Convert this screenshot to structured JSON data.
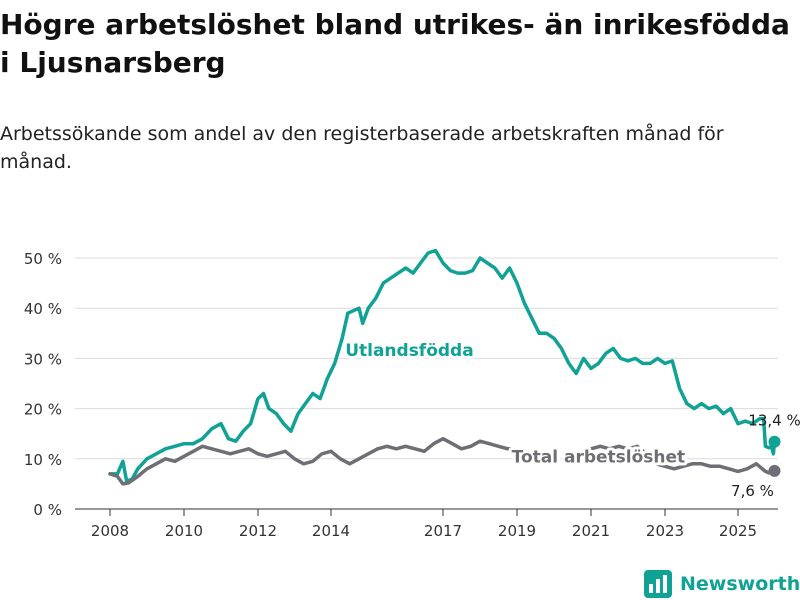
{
  "title": "Högre arbetslöshet bland utrikes- än inrikesfödda i Ljusnarsberg",
  "subtitle": "Arbetssökande som andel av den registerbaserade arbetskraften månad för månad.",
  "brand": {
    "name": "Newsworthy",
    "icon": "bar-chart-logo-icon"
  },
  "colors": {
    "foreign_born": "#0fa295",
    "total": "#6e6e74",
    "grid": "#dcdcdc",
    "brand": "#0fa295"
  },
  "chart_data": {
    "type": "line",
    "ylim": [
      0,
      50
    ],
    "yticks": [
      0,
      10,
      20,
      30,
      40,
      50
    ],
    "ytick_labels": [
      "0 %",
      "10 %",
      "20 %",
      "30 %",
      "40 %",
      "50 %"
    ],
    "xlim": [
      2007.5,
      2026.0
    ],
    "xticks": [
      2008,
      2010,
      2012,
      2014,
      2017,
      2019,
      2021,
      2023,
      2025
    ],
    "xtick_labels": [
      "2008",
      "2010",
      "2012",
      "2014",
      "2017",
      "2019",
      "2021",
      "2023",
      "2025"
    ],
    "grid": true,
    "series": [
      {
        "name": "Utlandsfödda",
        "color": "#0fa295",
        "end_label": "13,4 %",
        "points": [
          [
            2008.0,
            7
          ],
          [
            2008.2,
            7
          ],
          [
            2008.35,
            9.5
          ],
          [
            2008.45,
            5.5
          ],
          [
            2008.6,
            6
          ],
          [
            2008.75,
            8
          ],
          [
            2009.0,
            10
          ],
          [
            2009.25,
            11
          ],
          [
            2009.5,
            12
          ],
          [
            2009.75,
            12.5
          ],
          [
            2010.0,
            13
          ],
          [
            2010.25,
            13
          ],
          [
            2010.5,
            14
          ],
          [
            2010.75,
            16
          ],
          [
            2011.0,
            17
          ],
          [
            2011.2,
            14
          ],
          [
            2011.4,
            13.5
          ],
          [
            2011.6,
            15.5
          ],
          [
            2011.8,
            17
          ],
          [
            2012.0,
            22
          ],
          [
            2012.15,
            23
          ],
          [
            2012.3,
            20
          ],
          [
            2012.5,
            19
          ],
          [
            2012.7,
            17
          ],
          [
            2012.9,
            15.5
          ],
          [
            2013.1,
            19
          ],
          [
            2013.3,
            21
          ],
          [
            2013.5,
            23
          ],
          [
            2013.7,
            22
          ],
          [
            2013.9,
            26
          ],
          [
            2014.1,
            29
          ],
          [
            2014.3,
            34
          ],
          [
            2014.45,
            39
          ],
          [
            2014.6,
            39.5
          ],
          [
            2014.75,
            40
          ],
          [
            2014.85,
            37
          ],
          [
            2015.0,
            40
          ],
          [
            2015.2,
            42
          ],
          [
            2015.4,
            45
          ],
          [
            2015.6,
            46
          ],
          [
            2015.8,
            47
          ],
          [
            2016.0,
            48
          ],
          [
            2016.2,
            47
          ],
          [
            2016.4,
            49
          ],
          [
            2016.6,
            51
          ],
          [
            2016.8,
            51.5
          ],
          [
            2017.0,
            49
          ],
          [
            2017.2,
            47.5
          ],
          [
            2017.4,
            47
          ],
          [
            2017.6,
            47
          ],
          [
            2017.8,
            47.5
          ],
          [
            2018.0,
            50
          ],
          [
            2018.2,
            49
          ],
          [
            2018.4,
            48
          ],
          [
            2018.6,
            46
          ],
          [
            2018.8,
            48
          ],
          [
            2019.0,
            45
          ],
          [
            2019.2,
            41
          ],
          [
            2019.4,
            38
          ],
          [
            2019.6,
            35
          ],
          [
            2019.8,
            35
          ],
          [
            2020.0,
            34
          ],
          [
            2020.2,
            32
          ],
          [
            2020.4,
            29
          ],
          [
            2020.6,
            27
          ],
          [
            2020.8,
            30
          ],
          [
            2021.0,
            28
          ],
          [
            2021.2,
            29
          ],
          [
            2021.4,
            31
          ],
          [
            2021.6,
            32
          ],
          [
            2021.8,
            30
          ],
          [
            2022.0,
            29.5
          ],
          [
            2022.2,
            30
          ],
          [
            2022.4,
            29
          ],
          [
            2022.6,
            29
          ],
          [
            2022.8,
            30
          ],
          [
            2023.0,
            29
          ],
          [
            2023.2,
            29.5
          ],
          [
            2023.4,
            24
          ],
          [
            2023.6,
            21
          ],
          [
            2023.8,
            20
          ],
          [
            2024.0,
            21
          ],
          [
            2024.2,
            20
          ],
          [
            2024.4,
            20.5
          ],
          [
            2024.6,
            19
          ],
          [
            2024.8,
            20
          ],
          [
            2025.0,
            17
          ],
          [
            2025.2,
            17.5
          ],
          [
            2025.4,
            17
          ],
          [
            2025.6,
            18
          ],
          [
            2025.7,
            18
          ],
          [
            2025.75,
            12.5
          ],
          [
            2025.85,
            12.2
          ],
          [
            2025.92,
            12.5
          ],
          [
            2025.97,
            11
          ],
          [
            2026.0,
            13.4
          ]
        ]
      },
      {
        "name": "Total arbetslöshet",
        "color": "#6e6e74",
        "end_label": "7,6 %",
        "points": [
          [
            2008.0,
            7
          ],
          [
            2008.2,
            6.5
          ],
          [
            2008.35,
            5
          ],
          [
            2008.5,
            5.2
          ],
          [
            2008.75,
            6.5
          ],
          [
            2009.0,
            8
          ],
          [
            2009.25,
            9
          ],
          [
            2009.5,
            10
          ],
          [
            2009.75,
            9.5
          ],
          [
            2010.0,
            10.5
          ],
          [
            2010.25,
            11.5
          ],
          [
            2010.5,
            12.5
          ],
          [
            2010.75,
            12
          ],
          [
            2011.0,
            11.5
          ],
          [
            2011.25,
            11
          ],
          [
            2011.5,
            11.5
          ],
          [
            2011.75,
            12
          ],
          [
            2012.0,
            11
          ],
          [
            2012.25,
            10.5
          ],
          [
            2012.5,
            11
          ],
          [
            2012.75,
            11.5
          ],
          [
            2013.0,
            10
          ],
          [
            2013.25,
            9
          ],
          [
            2013.5,
            9.5
          ],
          [
            2013.75,
            11
          ],
          [
            2014.0,
            11.5
          ],
          [
            2014.25,
            10
          ],
          [
            2014.5,
            9
          ],
          [
            2014.75,
            10
          ],
          [
            2015.0,
            11
          ],
          [
            2015.25,
            12
          ],
          [
            2015.5,
            12.5
          ],
          [
            2015.75,
            12
          ],
          [
            2016.0,
            12.5
          ],
          [
            2016.25,
            12
          ],
          [
            2016.5,
            11.5
          ],
          [
            2016.75,
            13
          ],
          [
            2017.0,
            14
          ],
          [
            2017.25,
            13
          ],
          [
            2017.5,
            12
          ],
          [
            2017.75,
            12.5
          ],
          [
            2018.0,
            13.5
          ],
          [
            2018.25,
            13
          ],
          [
            2018.5,
            12.5
          ],
          [
            2018.75,
            12
          ],
          [
            2019.0,
            12
          ]
        ],
        "points_2": [
          [
            2020.8,
            10.5
          ],
          [
            2021.0,
            12
          ],
          [
            2021.25,
            12.5
          ],
          [
            2021.5,
            12
          ],
          [
            2021.75,
            12.5
          ],
          [
            2022.0,
            12
          ],
          [
            2022.25,
            12.5
          ],
          [
            2022.5,
            11
          ],
          [
            2022.75,
            9
          ],
          [
            2023.0,
            8.5
          ],
          [
            2023.25,
            8
          ],
          [
            2023.5,
            8.5
          ],
          [
            2023.75,
            9
          ],
          [
            2024.0,
            9
          ],
          [
            2024.25,
            8.5
          ],
          [
            2024.5,
            8.5
          ],
          [
            2024.75,
            8
          ],
          [
            2025.0,
            7.5
          ],
          [
            2025.25,
            8
          ],
          [
            2025.5,
            9
          ],
          [
            2025.75,
            7.5
          ],
          [
            2025.85,
            7.2
          ],
          [
            2026.0,
            7.6
          ]
        ]
      }
    ],
    "annotations": [
      {
        "text": "Utlandsfödda",
        "x": 2017.6,
        "y": 30.5,
        "series": 0
      },
      {
        "text": "Total arbetslöshet",
        "x": 2021.2,
        "y": 9.3,
        "series": 1
      }
    ]
  }
}
